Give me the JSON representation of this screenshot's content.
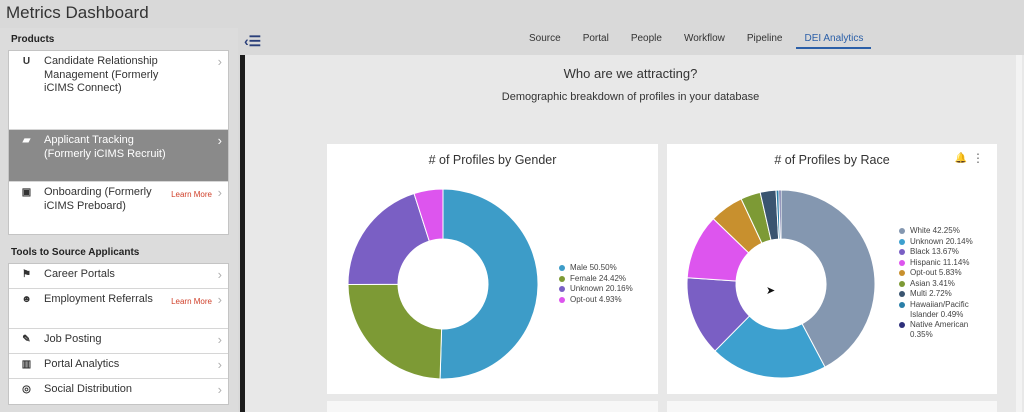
{
  "app": {
    "title": "Metrics Dashboard"
  },
  "sidebar": {
    "products_header": "Products",
    "products": [
      {
        "label": "Candidate Relationship Management (Formerly iCIMS Connect)",
        "icon": "magnet-icon",
        "active": false,
        "learn_more": ""
      },
      {
        "label": "Applicant Tracking (Formerly iCIMS Recruit)",
        "icon": "briefcase-icon",
        "active": true,
        "learn_more": ""
      },
      {
        "label": "Onboarding (Formerly iCIMS Preboard)",
        "icon": "id-card-icon",
        "active": false,
        "learn_more": "Learn More"
      }
    ],
    "tools_header": "Tools to Source Applicants",
    "tools": [
      {
        "label": "Career Portals",
        "icon": "flag-icon",
        "learn_more": ""
      },
      {
        "label": "Employment Referrals",
        "icon": "people-icon",
        "learn_more": "Learn More"
      },
      {
        "label": "Job Posting",
        "icon": "pin-icon",
        "learn_more": ""
      },
      {
        "label": "Portal Analytics",
        "icon": "chart-icon",
        "learn_more": ""
      },
      {
        "label": "Social Distribution",
        "icon": "broadcast-icon",
        "learn_more": ""
      }
    ]
  },
  "nav": {
    "tabs": [
      {
        "label": "Source",
        "active": false
      },
      {
        "label": "Portal",
        "active": false
      },
      {
        "label": "People",
        "active": false
      },
      {
        "label": "Workflow",
        "active": false
      },
      {
        "label": "Pipeline",
        "active": false
      },
      {
        "label": "DEI Analytics",
        "active": true
      }
    ]
  },
  "main": {
    "title": "Who are we attracting?",
    "subtitle": "Demographic breakdown of profiles in your database"
  },
  "chart_data": [
    {
      "type": "pie",
      "title": "# of Profiles by Gender",
      "legend_position": "right",
      "slices": [
        {
          "label": "Male 50.50%",
          "value": 50.5,
          "color": "#3d9cc8"
        },
        {
          "label": "Female 24.42%",
          "value": 24.42,
          "color": "#7d9a35"
        },
        {
          "label": "Unknown 20.16%",
          "value": 20.16,
          "color": "#7a5fc4"
        },
        {
          "label": "Opt-out 4.93%",
          "value": 4.93,
          "color": "#dd55ee"
        }
      ]
    },
    {
      "type": "pie",
      "title": "# of Profiles by Race",
      "legend_position": "right",
      "slices": [
        {
          "label": "White 42.25%",
          "value": 42.25,
          "color": "#8497b0"
        },
        {
          "label": "Unknown 20.14%",
          "value": 20.14,
          "color": "#3da0cf"
        },
        {
          "label": "Black 13.67%",
          "value": 13.67,
          "color": "#7a5fc4"
        },
        {
          "label": "Hispanic 11.14%",
          "value": 11.14,
          "color": "#dd55ee"
        },
        {
          "label": "Opt-out 5.83%",
          "value": 5.83,
          "color": "#c8902e"
        },
        {
          "label": "Asian 3.41%",
          "value": 3.41,
          "color": "#7d9a35"
        },
        {
          "label": "Multi 2.72%",
          "value": 2.72,
          "color": "#3a5570"
        },
        {
          "label": "Hawaiian/Pacific Islander 0.49%",
          "value": 0.49,
          "color": "#2a7fa8"
        },
        {
          "label": "Native American 0.35%",
          "value": 0.35,
          "color": "#2d2f7a"
        }
      ]
    }
  ]
}
